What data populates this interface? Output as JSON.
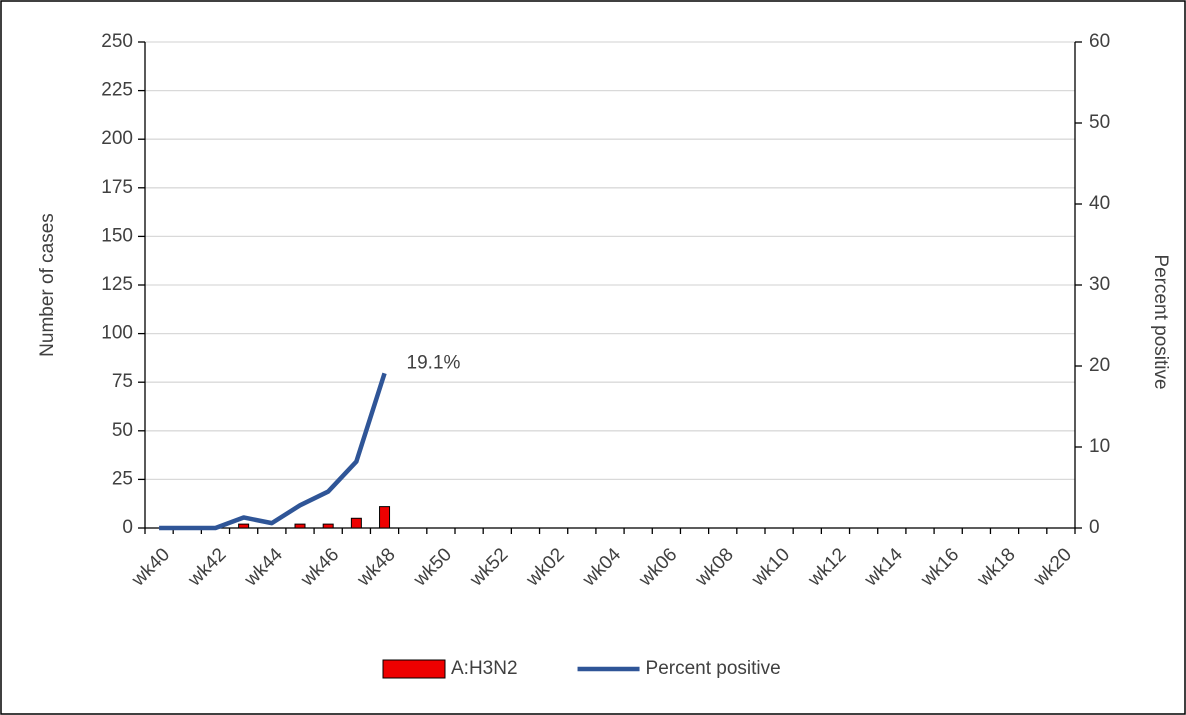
{
  "chart_data": {
    "type": "bar",
    "categories": [
      "wk40",
      null,
      "wk42",
      null,
      "wk44",
      null,
      "wk46",
      null,
      "wk48",
      null,
      "wk50",
      null,
      "wk52",
      null,
      "wk02",
      null,
      "wk04",
      null,
      "wk06",
      null,
      "wk08",
      null,
      "wk10",
      null,
      "wk12",
      null,
      "wk14",
      null,
      "wk16",
      null,
      "wk18",
      null,
      "wk20"
    ],
    "y_label": "Number of cases",
    "y2_label": "Percent positive",
    "ylim": [
      0,
      250
    ],
    "yticks": [
      0,
      25,
      50,
      75,
      100,
      125,
      150,
      175,
      200,
      225,
      250
    ],
    "y2lim": [
      0,
      60
    ],
    "y2ticks": [
      0,
      10,
      20,
      30,
      40,
      50,
      60
    ],
    "grid": true,
    "legend": "bottom",
    "series": [
      {
        "name": "A:H3N2",
        "type": "bar",
        "color": "#ee0000",
        "values": [
          0,
          0,
          0,
          2,
          0,
          2,
          2,
          5,
          11,
          null,
          null,
          null,
          null,
          null,
          null,
          null,
          null,
          null,
          null,
          null,
          null,
          null,
          null,
          null,
          null,
          null,
          null,
          null,
          null,
          null,
          null,
          null,
          null
        ]
      },
      {
        "name": "Percent positive",
        "type": "line",
        "axis": "y2",
        "color": "#2f5597",
        "values": [
          0,
          0,
          0,
          1.3,
          0.6,
          2.8,
          4.5,
          8.2,
          19.1,
          null,
          null,
          null,
          null,
          null,
          null,
          null,
          null,
          null,
          null,
          null,
          null,
          null,
          null,
          null,
          null,
          null,
          null,
          null,
          null,
          null,
          null,
          null,
          null
        ],
        "value_labels": [
          null,
          null,
          null,
          null,
          null,
          null,
          null,
          null,
          "19.1%",
          null,
          null,
          null,
          null,
          null,
          null,
          null,
          null,
          null,
          null,
          null,
          null,
          null,
          null,
          null,
          null,
          null,
          null,
          null,
          null,
          null,
          null,
          null,
          null
        ]
      }
    ]
  }
}
